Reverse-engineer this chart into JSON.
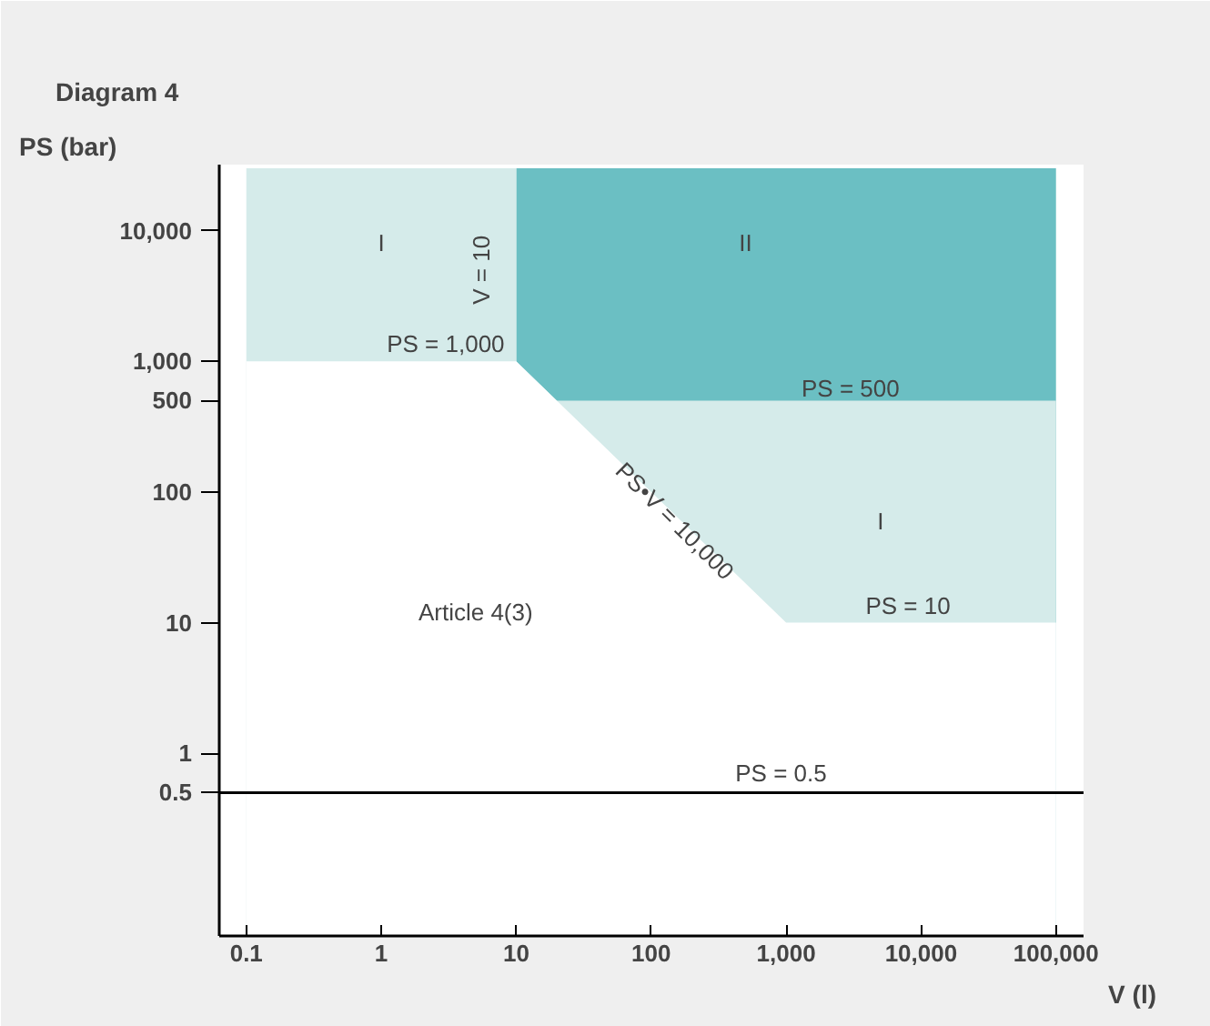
{
  "chart_data": {
    "type": "area",
    "title": "Diagram 4",
    "xlabel": "V (l)",
    "ylabel": "PS (bar)",
    "log": "xy",
    "xlim": [
      0.063,
      160000
    ],
    "ylim": [
      0.04,
      32000
    ],
    "xticks": [
      0.1,
      1,
      10,
      100,
      {
        "value": 1000,
        "label": "1,000"
      },
      {
        "value": 10000,
        "label": "10,000"
      },
      {
        "value": 100000,
        "label": "100,000"
      }
    ],
    "yticks": [
      0.5,
      1,
      10,
      100,
      500,
      {
        "value": 1000,
        "label": "1,000"
      },
      {
        "value": 10000,
        "label": "10,000"
      }
    ],
    "grid": false,
    "series": [
      {
        "color": "#6bbfc3",
        "x": [
          10,
          100000
        ],
        "values": [
          30000,
          30000
        ]
      },
      {
        "color": "#d5ebea",
        "x": [
          0.1,
          10,
          10,
          20,
          100000
        ],
        "values": [
          30000,
          30000,
          1000,
          500,
          500
        ]
      },
      {
        "color": "#ffffff",
        "x": [
          0.1,
          10,
          1000,
          100000
        ],
        "values": [
          1000,
          1000,
          10,
          10
        ]
      }
    ],
    "ref_lines": [
      {
        "axis": "y",
        "value": 0.5,
        "label": "PS = 0.5",
        "color": "#000000"
      }
    ],
    "annotations": [
      "I",
      "II",
      "I",
      "V = 10",
      "PS = 1,000",
      "PS = 500",
      "PS = 10",
      "PS•V = 10,000",
      "Article 4(3)"
    ]
  }
}
